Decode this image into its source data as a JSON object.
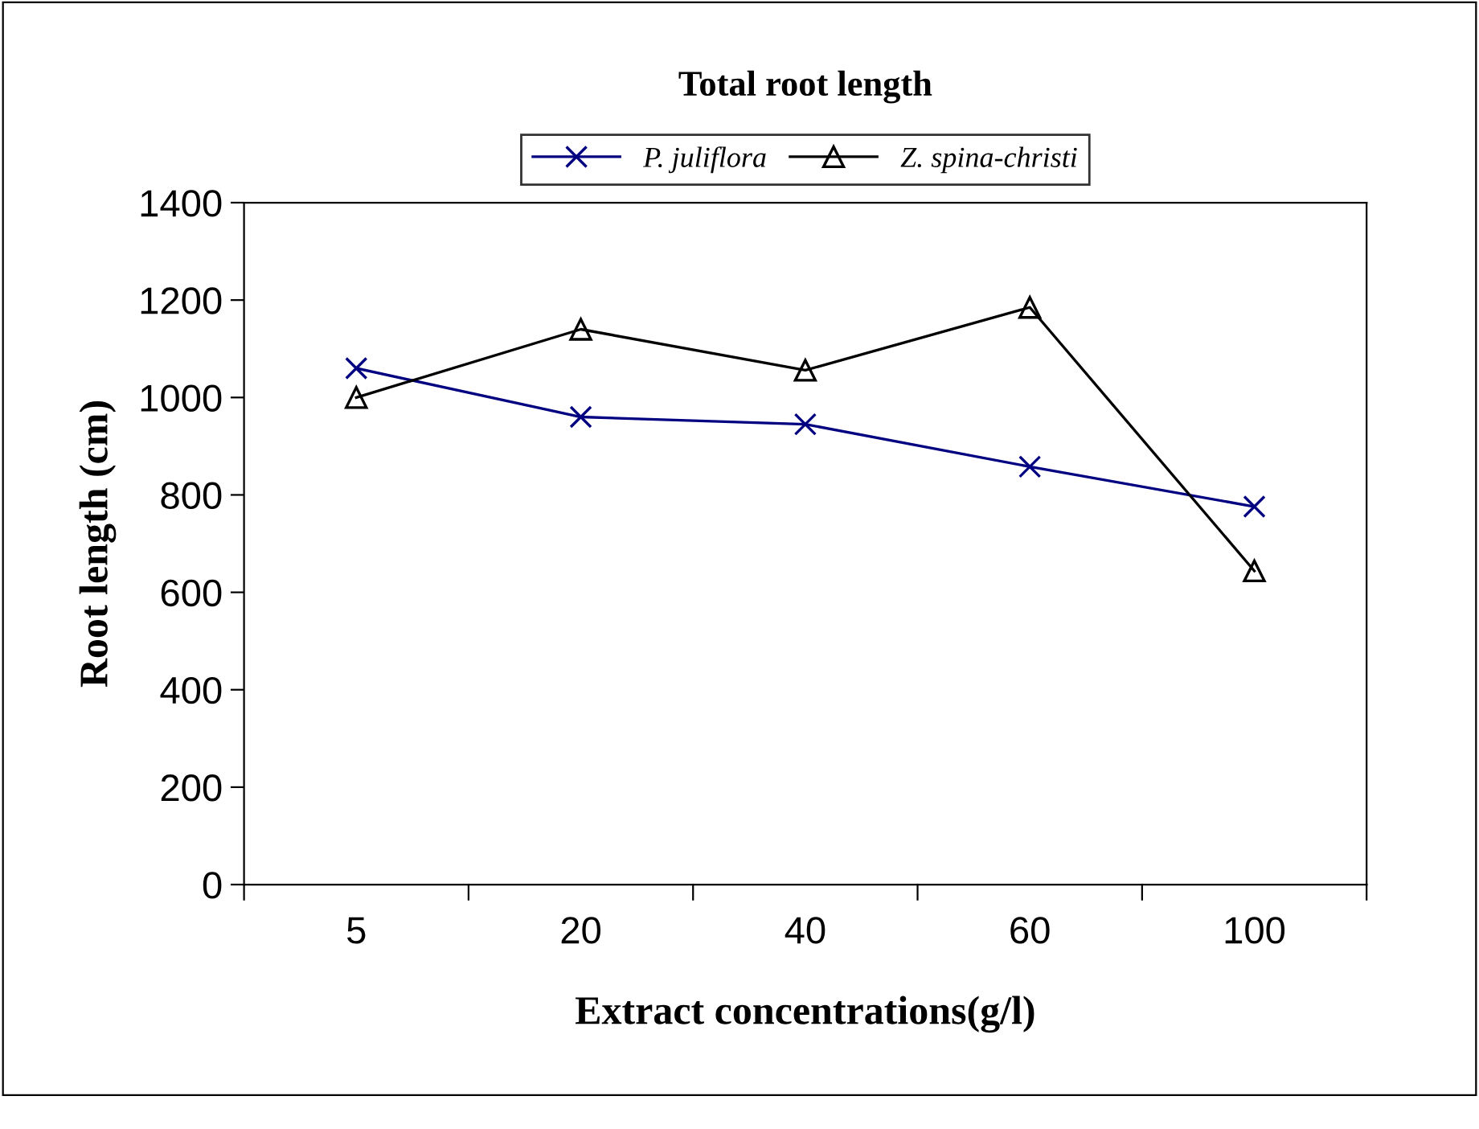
{
  "chart_data": {
    "type": "line",
    "title": "Total root length",
    "xlabel": "Extract concentrations(g/l)",
    "ylabel": "Root length (cm)",
    "categories": [
      "5",
      "20",
      "40",
      "60",
      "100"
    ],
    "series": [
      {
        "name": "P. juliflora",
        "color": "#000080",
        "marker": "cross",
        "values": [
          1060,
          960,
          945,
          858,
          776
        ]
      },
      {
        "name": "Z. spina-christi",
        "color": "#000000",
        "marker": "triangle",
        "values": [
          1000,
          1140,
          1056,
          1185,
          644
        ]
      }
    ],
    "ylim": [
      0,
      1400
    ],
    "yticks": [
      0,
      200,
      400,
      600,
      800,
      1000,
      1200,
      1400
    ],
    "grid": false,
    "legend": "top",
    "line_style": "solid"
  }
}
